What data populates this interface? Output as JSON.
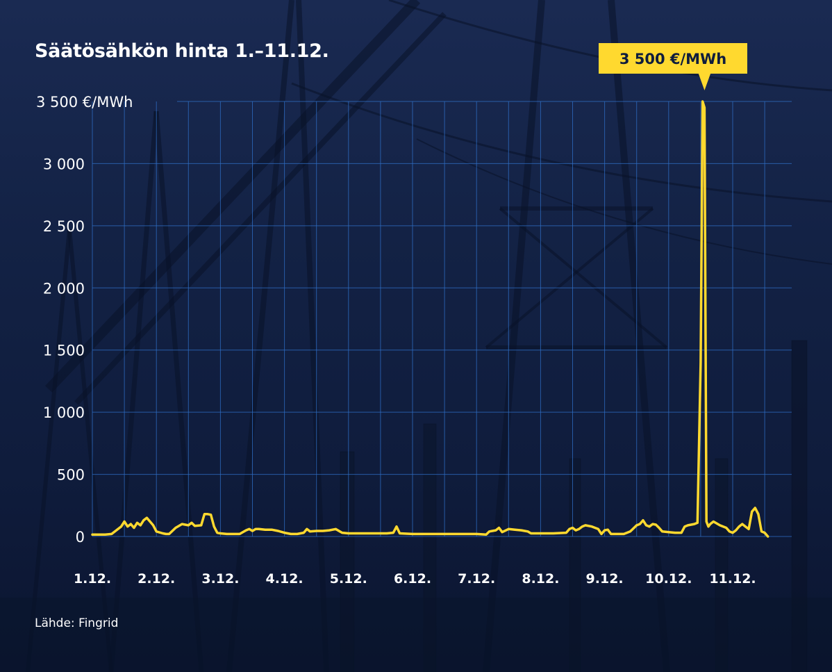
{
  "title": "Säätösähkön hinta 1.–11.12.",
  "source": "Lähde: Fingrid",
  "colors": {
    "line": "#ffd92f",
    "grid": "#2f6fc7",
    "background": "#132245",
    "callout_bg": "#ffd92f",
    "callout_text": "#0f1d3d"
  },
  "chart_data": {
    "type": "line",
    "title": "Säätösähkön hinta 1.–11.12.",
    "xlabel": "",
    "ylabel": "",
    "y_unit": "€/MWh",
    "ylim": [
      0,
      3500
    ],
    "yticks": [
      0,
      500,
      1000,
      1500,
      2000,
      2500,
      3000,
      3500
    ],
    "ytick_labels": [
      "0",
      "500",
      "1 000",
      "1 500",
      "2 000",
      "2 500",
      "3 000",
      "3 500 €/MWh"
    ],
    "xlim": [
      1,
      11.6
    ],
    "xticks": [
      1,
      2,
      3,
      4,
      5,
      6,
      7,
      8,
      9,
      10,
      11
    ],
    "xtick_labels": [
      "1.12.",
      "2.12.",
      "3.12.",
      "4.12.",
      "5.12.",
      "6.12.",
      "7.12.",
      "8.12.",
      "9.12.",
      "10.12.",
      "11.12."
    ],
    "grid": true,
    "annotation": {
      "label": "3 500 €/MWh",
      "x": 10.56,
      "y": 3500
    },
    "series": [
      {
        "x": [
          1.0,
          1.2,
          1.3,
          1.4,
          1.45,
          1.5,
          1.55,
          1.6,
          1.65,
          1.7,
          1.75,
          1.8,
          1.85,
          1.9,
          1.95,
          2.0,
          2.1,
          2.15,
          2.2,
          2.3,
          2.4,
          2.5,
          2.55,
          2.6,
          2.7,
          2.75,
          2.8,
          2.85,
          2.9,
          2.95,
          3.0,
          3.1,
          3.2,
          3.3,
          3.4,
          3.45,
          3.5,
          3.55,
          3.6,
          3.7,
          3.8,
          3.9,
          4.0,
          4.1,
          4.2,
          4.3,
          4.35,
          4.4,
          4.5,
          4.6,
          4.7,
          4.8,
          4.9,
          5.0,
          5.2,
          5.4,
          5.6,
          5.7,
          5.75,
          5.8,
          6.0,
          6.2,
          6.4,
          6.6,
          6.8,
          7.0,
          7.15,
          7.2,
          7.3,
          7.35,
          7.4,
          7.5,
          7.6,
          7.7,
          7.8,
          7.85,
          7.9,
          8.0,
          8.2,
          8.4,
          8.45,
          8.5,
          8.55,
          8.6,
          8.65,
          8.7,
          8.8,
          8.9,
          8.95,
          9.0,
          9.05,
          9.1,
          9.2,
          9.3,
          9.4,
          9.5,
          9.55,
          9.6,
          9.65,
          9.7,
          9.75,
          9.8,
          9.85,
          9.9,
          10.0,
          10.1,
          10.2,
          10.25,
          10.3,
          10.4,
          10.45,
          10.5,
          10.53,
          10.56,
          10.59,
          10.62,
          10.65,
          10.7,
          10.8,
          10.9,
          10.95,
          11.0,
          11.05,
          11.1,
          11.15,
          11.2,
          11.25,
          11.3,
          11.35,
          11.4,
          11.45,
          11.5,
          11.55
        ],
        "y": [
          15,
          15,
          20,
          60,
          80,
          120,
          80,
          100,
          70,
          110,
          90,
          130,
          150,
          120,
          90,
          40,
          25,
          20,
          20,
          70,
          100,
          90,
          110,
          85,
          90,
          180,
          180,
          175,
          80,
          30,
          25,
          20,
          20,
          20,
          50,
          60,
          45,
          60,
          60,
          55,
          55,
          45,
          30,
          20,
          20,
          30,
          60,
          40,
          45,
          45,
          50,
          60,
          30,
          25,
          25,
          25,
          25,
          30,
          80,
          25,
          20,
          20,
          20,
          20,
          20,
          20,
          15,
          40,
          50,
          70,
          35,
          60,
          55,
          50,
          40,
          25,
          25,
          25,
          25,
          30,
          60,
          70,
          50,
          60,
          80,
          90,
          80,
          60,
          20,
          50,
          55,
          20,
          20,
          20,
          40,
          90,
          100,
          130,
          90,
          80,
          100,
          95,
          70,
          40,
          35,
          30,
          30,
          80,
          90,
          100,
          110,
          1400,
          3500,
          3450,
          120,
          80,
          100,
          120,
          90,
          70,
          40,
          30,
          50,
          80,
          100,
          80,
          60,
          200,
          230,
          180,
          40,
          30,
          0
        ]
      }
    ]
  }
}
